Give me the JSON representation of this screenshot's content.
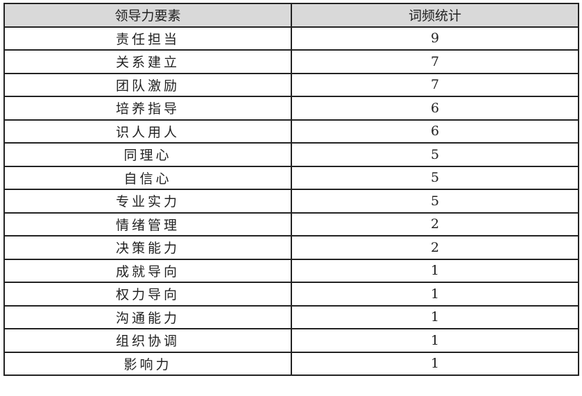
{
  "table": {
    "headers": [
      "领导力要素",
      "词频统计"
    ],
    "rows": [
      [
        "责任担当",
        "9"
      ],
      [
        "关系建立",
        "7"
      ],
      [
        "团队激励",
        "7"
      ],
      [
        "培养指导",
        "6"
      ],
      [
        "识人用人",
        "6"
      ],
      [
        "同理心",
        "5"
      ],
      [
        "自信心",
        "5"
      ],
      [
        "专业实力",
        "5"
      ],
      [
        "情绪管理",
        "2"
      ],
      [
        "决策能力",
        "2"
      ],
      [
        "成就导向",
        "1"
      ],
      [
        "权力导向",
        "1"
      ],
      [
        "沟通能力",
        "1"
      ],
      [
        "组织协调",
        "1"
      ],
      [
        "影响力",
        "1"
      ]
    ],
    "header_bg": "#d9d9d9"
  }
}
